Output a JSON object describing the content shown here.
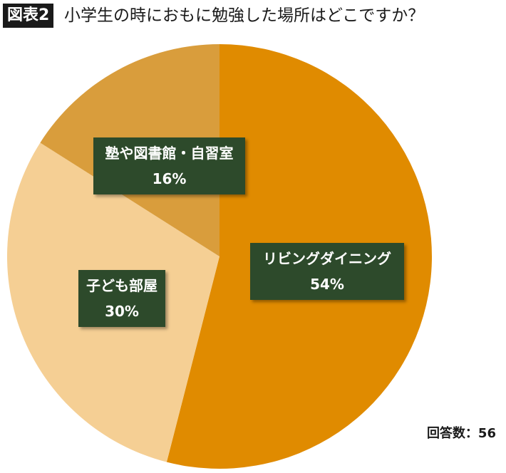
{
  "header": {
    "badge": "図表2"
  },
  "chart_data": {
    "type": "pie",
    "title": "小学生の時におもに勉強した場所はどこですか？",
    "categories": [
      "リビングダイニング",
      "子ども部屋",
      "塾や図書館・自習室"
    ],
    "values": [
      54,
      30,
      16
    ],
    "value_labels": [
      "54%",
      "30%",
      "16%"
    ],
    "colors": [
      "#e08b00",
      "#f5cf94",
      "#d99d3c"
    ],
    "start": "12 o'clock, clockwise",
    "legend": "none",
    "note": "回答数：56"
  }
}
